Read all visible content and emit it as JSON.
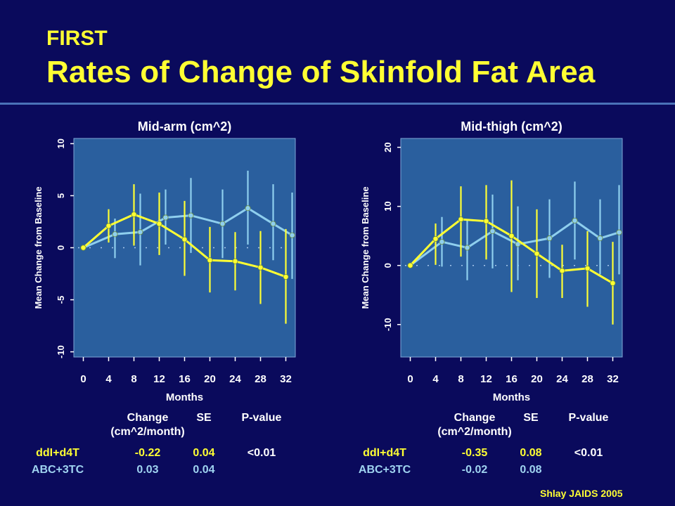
{
  "header": {
    "title_line1": "FIRST",
    "title_line2": "Rates of Change of Skinfold Fat Area"
  },
  "colors": {
    "background": "#0a0a5c",
    "plot_area": "#2a5f9e",
    "title": "#ffff33",
    "divider": "#4a72b8",
    "ddl_d4t": "#ffff33",
    "abc_3tc": "#8fcfee"
  },
  "chart_data": [
    {
      "type": "line",
      "title": "Mid-arm (cm^2)",
      "xlabel": "Months",
      "ylabel": "Mean Change from Baseline",
      "x": [
        0,
        4,
        8,
        12,
        16,
        20,
        24,
        28,
        32
      ],
      "xticks": [
        "0",
        "4",
        "8",
        "12",
        "16",
        "20",
        "24",
        "28",
        "32"
      ],
      "yticks": [
        -10,
        -5,
        0,
        5,
        10
      ],
      "ylim": [
        -10.5,
        10.5
      ],
      "xlim": [
        -1.5,
        33.5
      ],
      "reference_line": 0,
      "series": [
        {
          "key": "abc_3tc",
          "x": [
            0,
            5,
            9,
            13,
            17,
            22,
            26,
            30,
            33
          ],
          "values": [
            0,
            1.3,
            1.5,
            2.9,
            3.1,
            2.3,
            3.8,
            2.3,
            1.2
          ],
          "err_low": [
            0,
            -1.0,
            -1.7,
            0.3,
            -0.5,
            -1.0,
            0.3,
            -1.2,
            -3.0
          ],
          "err_high": [
            0,
            2.8,
            5.2,
            5.6,
            6.7,
            5.6,
            7.4,
            6.1,
            5.3
          ]
        },
        {
          "key": "ddl_d4t",
          "x": [
            0,
            4,
            8,
            12,
            16,
            20,
            24,
            28,
            32
          ],
          "values": [
            0,
            2.1,
            3.2,
            2.3,
            0.8,
            -1.2,
            -1.3,
            -1.9,
            -2.8
          ],
          "err_low": [
            0,
            0.5,
            0.2,
            -0.7,
            -2.7,
            -4.3,
            -4.1,
            -5.4,
            -7.3
          ],
          "err_high": [
            0,
            3.7,
            6.1,
            5.3,
            4.5,
            2.0,
            1.5,
            1.6,
            1.8
          ]
        }
      ]
    },
    {
      "type": "line",
      "title": "Mid-thigh (cm^2)",
      "xlabel": "Months",
      "ylabel": "Mean Change from Baseline",
      "x": [
        0,
        4,
        8,
        12,
        16,
        20,
        24,
        28,
        32
      ],
      "xticks": [
        "0",
        "4",
        "8",
        "12",
        "16",
        "20",
        "24",
        "28",
        "32"
      ],
      "yticks": [
        -10,
        0,
        10,
        20
      ],
      "ylim": [
        -15.5,
        21.5
      ],
      "xlim": [
        -1.5,
        33.5
      ],
      "reference_line": 0,
      "series": [
        {
          "key": "abc_3tc",
          "x": [
            0,
            5,
            9,
            13,
            17,
            22,
            26,
            30,
            33
          ],
          "values": [
            0,
            4.0,
            3.0,
            5.8,
            3.6,
            4.6,
            7.6,
            4.6,
            5.6
          ],
          "err_low": [
            0,
            -0.2,
            -2.5,
            -0.5,
            -2.5,
            -2.1,
            1.0,
            -1.5,
            -1.5
          ],
          "err_high": [
            0,
            8.2,
            7.6,
            12.0,
            10.0,
            11.2,
            14.2,
            11.2,
            13.6
          ]
        },
        {
          "key": "ddl_d4t",
          "x": [
            0,
            4,
            8,
            12,
            16,
            20,
            24,
            28,
            32
          ],
          "values": [
            0,
            4.5,
            7.8,
            7.5,
            5.0,
            2.0,
            -0.9,
            -0.5,
            -3.0
          ],
          "err_low": [
            0,
            0.1,
            1.5,
            1.0,
            -4.5,
            -5.5,
            -5.5,
            -7.0,
            -10.0
          ],
          "err_high": [
            0,
            7.1,
            13.4,
            13.6,
            14.4,
            9.5,
            3.5,
            5.8,
            4.0
          ]
        }
      ]
    }
  ],
  "stats": [
    {
      "headers": {
        "change": "Change",
        "change_unit": "(cm^2/month)",
        "se": "SE",
        "pvalue": "P-value"
      },
      "rows": [
        {
          "key": "ddl_d4t",
          "label": "ddI+d4T",
          "change": "-0.22",
          "se": "0.04",
          "pvalue": "<0.01"
        },
        {
          "key": "abc_3tc",
          "label": "ABC+3TC",
          "change": "0.03",
          "se": "0.04",
          "pvalue": ""
        }
      ]
    },
    {
      "headers": {
        "change": "Change",
        "change_unit": "(cm^2/month)",
        "se": "SE",
        "pvalue": "P-value"
      },
      "rows": [
        {
          "key": "ddl_d4t",
          "label": "ddI+d4T",
          "change": "-0.35",
          "se": "0.08",
          "pvalue": "<0.01"
        },
        {
          "key": "abc_3tc",
          "label": "ABC+3TC",
          "change": "-0.02",
          "se": "0.08",
          "pvalue": ""
        }
      ]
    }
  ],
  "credit": "Shlay JAIDS 2005"
}
